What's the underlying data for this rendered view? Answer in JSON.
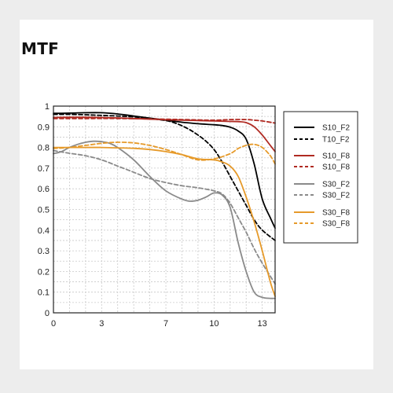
{
  "chart_data": {
    "type": "line",
    "title": "MTF",
    "xlabel": "",
    "ylabel": "",
    "xlim": [
      0,
      13.8
    ],
    "ylim": [
      0,
      1
    ],
    "xticks": [
      0,
      3,
      7,
      10,
      13
    ],
    "yticks": [
      0,
      0.1,
      0.2,
      0.3,
      0.4,
      0.5,
      0.6,
      0.7,
      0.8,
      0.9,
      1
    ],
    "ytick_labels": [
      "0",
      "0.1",
      "0.2",
      "0.3",
      "0.4",
      "0.5",
      "0.6",
      "0.7",
      "0.8",
      "0.9",
      "1"
    ],
    "grid": true,
    "legend_position": "right",
    "series": [
      {
        "name": "S10_F2",
        "color": "#000000",
        "dash": "solid",
        "x": [
          0,
          1,
          2,
          3,
          4,
          5,
          6,
          7,
          8,
          9,
          10,
          10.5,
          11,
          11.5,
          12,
          12.5,
          13,
          13.5,
          13.8
        ],
        "y": [
          0.965,
          0.966,
          0.968,
          0.968,
          0.962,
          0.952,
          0.942,
          0.932,
          0.922,
          0.915,
          0.91,
          0.906,
          0.898,
          0.88,
          0.84,
          0.72,
          0.55,
          0.46,
          0.41
        ]
      },
      {
        "name": "T10_F2",
        "color": "#000000",
        "dash": "dashed",
        "x": [
          0,
          1,
          2,
          3,
          4,
          5,
          6,
          7,
          7.5,
          8,
          8.5,
          9,
          9.5,
          10,
          10.5,
          11,
          11.5,
          12,
          12.5,
          13,
          13.8
        ],
        "y": [
          0.96,
          0.96,
          0.958,
          0.955,
          0.952,
          0.948,
          0.94,
          0.93,
          0.92,
          0.905,
          0.885,
          0.86,
          0.83,
          0.79,
          0.73,
          0.66,
          0.59,
          0.52,
          0.45,
          0.4,
          0.35
        ]
      },
      {
        "name": "S10_F8",
        "color": "#b02a22",
        "dash": "solid",
        "x": [
          0,
          1,
          2,
          3,
          4,
          5,
          6,
          7,
          8,
          9,
          10,
          11,
          11.5,
          12,
          12.5,
          13,
          13.5,
          13.8
        ],
        "y": [
          0.945,
          0.946,
          0.946,
          0.945,
          0.943,
          0.94,
          0.937,
          0.934,
          0.932,
          0.93,
          0.928,
          0.926,
          0.925,
          0.92,
          0.9,
          0.86,
          0.81,
          0.78
        ]
      },
      {
        "name": "S10_F8",
        "color": "#b02a22",
        "dash": "dashed",
        "x": [
          0,
          2,
          4,
          6,
          8,
          10,
          11,
          12,
          12.5,
          13,
          13.8
        ],
        "y": [
          0.94,
          0.94,
          0.94,
          0.938,
          0.935,
          0.932,
          0.935,
          0.935,
          0.932,
          0.928,
          0.918
        ]
      },
      {
        "name": "S30_F2",
        "color": "#8a8a8a",
        "dash": "solid",
        "x": [
          0,
          0.5,
          1,
          1.5,
          2,
          2.5,
          3,
          3.5,
          4,
          5,
          6,
          7,
          8,
          8.5,
          9,
          9.5,
          10,
          10.5,
          11,
          11.5,
          12,
          12.5,
          13,
          13.5,
          13.8
        ],
        "y": [
          0.77,
          0.78,
          0.8,
          0.815,
          0.825,
          0.83,
          0.828,
          0.82,
          0.8,
          0.74,
          0.66,
          0.59,
          0.55,
          0.54,
          0.545,
          0.56,
          0.58,
          0.57,
          0.51,
          0.34,
          0.2,
          0.1,
          0.075,
          0.07,
          0.07
        ]
      },
      {
        "name": "S30_F2",
        "color": "#8a8a8a",
        "dash": "dashed",
        "x": [
          0,
          1,
          2,
          3,
          4,
          5,
          6,
          7,
          8,
          9,
          10,
          10.5,
          11,
          11.5,
          12,
          12.5,
          13,
          13.8
        ],
        "y": [
          0.785,
          0.772,
          0.76,
          0.74,
          0.71,
          0.68,
          0.65,
          0.63,
          0.615,
          0.605,
          0.59,
          0.575,
          0.53,
          0.46,
          0.39,
          0.31,
          0.24,
          0.14
        ]
      },
      {
        "name": "S30_F8",
        "color": "#e69a2a",
        "dash": "solid",
        "x": [
          0,
          1,
          2,
          3,
          4,
          5,
          6,
          7,
          8,
          9,
          10,
          10.5,
          11,
          11.5,
          12,
          12.5,
          13,
          13.5,
          13.8
        ],
        "y": [
          0.8,
          0.8,
          0.8,
          0.8,
          0.798,
          0.796,
          0.79,
          0.78,
          0.765,
          0.745,
          0.74,
          0.73,
          0.71,
          0.66,
          0.56,
          0.44,
          0.3,
          0.15,
          0.08
        ]
      },
      {
        "name": "S30_F8",
        "color": "#e69a2a",
        "dash": "dashed",
        "x": [
          0,
          1,
          2,
          3,
          4,
          5,
          6,
          7,
          8,
          9,
          10,
          11,
          11.5,
          12,
          12.5,
          13,
          13.5,
          13.8
        ],
        "y": [
          0.795,
          0.8,
          0.81,
          0.82,
          0.825,
          0.822,
          0.81,
          0.79,
          0.765,
          0.74,
          0.745,
          0.77,
          0.795,
          0.81,
          0.815,
          0.8,
          0.76,
          0.72
        ]
      }
    ]
  }
}
